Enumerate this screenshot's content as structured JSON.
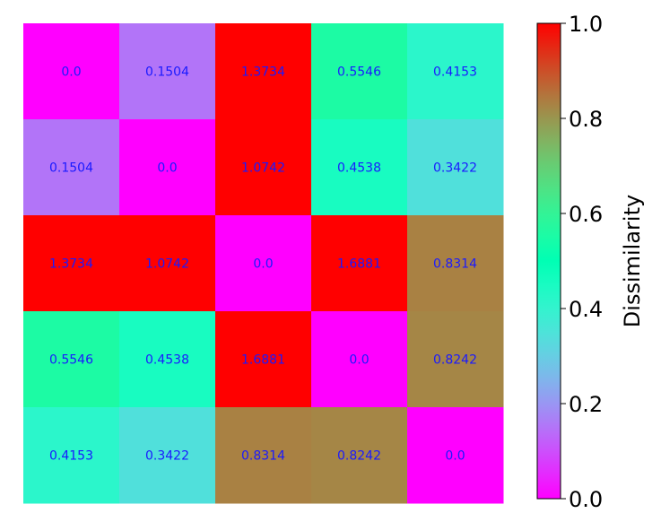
{
  "chart_data": {
    "type": "heatmap",
    "matrix": [
      [
        0.0,
        0.1504,
        1.3734,
        0.5546,
        0.4153
      ],
      [
        0.1504,
        0.0,
        1.0742,
        0.4538,
        0.3422
      ],
      [
        1.3734,
        1.0742,
        0.0,
        1.6881,
        0.8314
      ],
      [
        0.5546,
        0.4538,
        1.6881,
        0.0,
        0.8242
      ],
      [
        0.4153,
        0.3422,
        0.8314,
        0.8242,
        0.0
      ]
    ],
    "cell_labels": [
      [
        "0.0",
        "0.1504",
        "1.3734",
        "0.5546",
        "0.4153"
      ],
      [
        "0.1504",
        "0.0",
        "1.0742",
        "0.4538",
        "0.3422"
      ],
      [
        "1.3734",
        "1.0742",
        "0.0",
        "1.6881",
        "0.8314"
      ],
      [
        "0.5546",
        "0.4538",
        "1.6881",
        "0.0",
        "0.8242"
      ],
      [
        "0.4153",
        "0.3422",
        "0.8314",
        "0.8242",
        "0.0"
      ]
    ],
    "colormap": "rainbow",
    "vmin": 0.0,
    "vmax": 1.0,
    "colorbar": {
      "label": "Dissimilarity",
      "ticks": [
        0.0,
        0.2,
        0.4,
        0.6,
        0.8,
        1.0
      ],
      "tick_labels": [
        "0.0",
        "0.2",
        "0.4",
        "0.6",
        "0.8",
        "1.0"
      ],
      "placement": "right"
    },
    "cell_label_color": "#1a1aff",
    "title": "",
    "xlabel": "",
    "ylabel": "",
    "grid": false
  }
}
